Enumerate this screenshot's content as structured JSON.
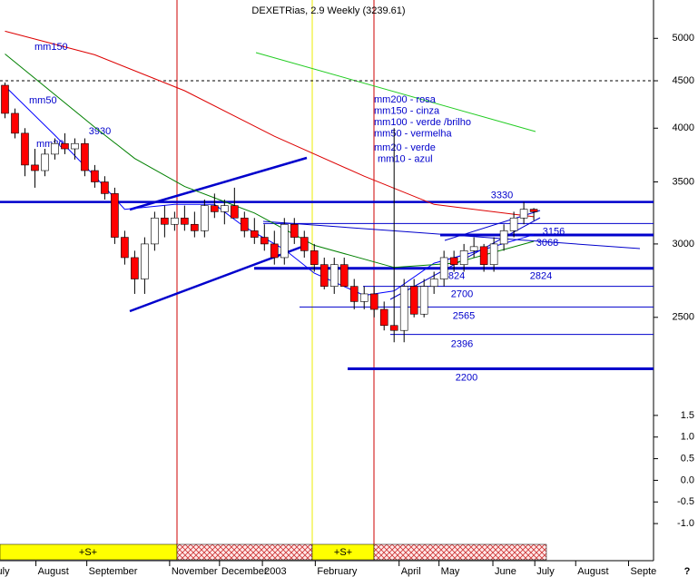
{
  "chart_data": {
    "type": "candlestick",
    "title": "DEXETRias, 2.9 Weekly (3239.61)",
    "candles": {
      "open": [
        4450,
        4150,
        3950,
        3650,
        3600,
        3750,
        3850,
        3800,
        3850,
        3600,
        3500,
        3400,
        3050,
        2900,
        2750,
        3000,
        3200,
        3150,
        3200,
        3150,
        3100,
        3300,
        3250,
        3300,
        3200,
        3100,
        3050,
        3000,
        2900,
        3150,
        3050,
        2950,
        2850,
        2700,
        2850,
        2700,
        2600,
        2650,
        2550,
        2450,
        2420,
        2700,
        2520,
        2700,
        2750,
        2900,
        2850,
        2950,
        2980,
        2850,
        3000,
        3100,
        3200,
        3270
      ],
      "high": [
        4480,
        4200,
        4000,
        3800,
        3800,
        3900,
        3950,
        3900,
        3900,
        3650,
        3550,
        3450,
        3100,
        2950,
        3050,
        3250,
        3300,
        3250,
        3300,
        3250,
        3350,
        3400,
        3350,
        3450,
        3250,
        3200,
        3150,
        3100,
        3200,
        3200,
        3100,
        3000,
        2900,
        2900,
        2900,
        2750,
        2700,
        2700,
        2600,
        4000,
        2750,
        2750,
        2750,
        2800,
        2950,
        2950,
        3000,
        3050,
        3000,
        3050,
        3150,
        3250,
        3330,
        3280
      ],
      "low": [
        4100,
        3900,
        3550,
        3450,
        3550,
        3700,
        3750,
        3700,
        3550,
        3450,
        3350,
        3000,
        2850,
        2650,
        2650,
        2950,
        3050,
        3100,
        3100,
        3050,
        3050,
        3200,
        3150,
        3200,
        3050,
        3000,
        2950,
        2850,
        2850,
        3000,
        2900,
        2800,
        2680,
        2650,
        2700,
        2550,
        2550,
        2500,
        2420,
        2350,
        2350,
        2500,
        2500,
        2650,
        2700,
        2800,
        2800,
        2900,
        2800,
        2800,
        2950,
        3050,
        3150,
        3180
      ],
      "close": [
        4150,
        3950,
        3650,
        3600,
        3750,
        3850,
        3800,
        3850,
        3600,
        3500,
        3400,
        3050,
        2900,
        2750,
        3000,
        3200,
        3150,
        3200,
        3150,
        3100,
        3300,
        3250,
        3300,
        3200,
        3100,
        3050,
        3000,
        2900,
        3150,
        3050,
        2950,
        2850,
        2700,
        2850,
        2700,
        2600,
        2650,
        2550,
        2450,
        2420,
        2700,
        2520,
        2700,
        2750,
        2900,
        2850,
        2950,
        2980,
        2850,
        3000,
        3100,
        3200,
        3270,
        3250
      ],
      "up_color": "#ffffff",
      "down_color": "#ff0000"
    },
    "series": [
      {
        "name": "mm150",
        "color": "#dd0000",
        "x": [
          0,
          9,
          18,
          27,
          36,
          43,
          53
        ],
        "values": [
          5090,
          4800,
          4390,
          3920,
          3550,
          3310,
          3210
        ]
      },
      {
        "name": "mm50",
        "color": "#0000ff",
        "x": [
          0,
          5,
          9,
          12,
          17,
          21,
          24,
          28,
          31,
          36,
          39,
          43,
          48,
          53
        ],
        "values": [
          4440,
          3930,
          3550,
          3270,
          3310,
          3310,
          3130,
          2960,
          2790,
          2640,
          2670,
          2860,
          2960,
          3070
        ]
      },
      {
        "name": "mm20",
        "color": "#008000",
        "x": [
          0,
          9,
          13,
          18,
          25,
          31,
          39,
          45,
          53
        ],
        "values": [
          4810,
          4010,
          3710,
          3460,
          3240,
          2990,
          2830,
          2860,
          3020
        ]
      }
    ],
    "levels": [
      3330,
      3156,
      3068,
      2824,
      2700,
      2565,
      2396,
      2200
    ],
    "peak_label": 3930,
    "legend_notes": [
      "mm200 - rosa",
      "mm150 - cinza",
      "mm100 - verde /brilho",
      "mm50 - vermelha",
      "mm20 - verde",
      "mm10 - azul"
    ],
    "signal_labels": [
      "+S+",
      "+S+"
    ],
    "scale": "log",
    "ylim": [
      2040,
      5500
    ],
    "yticks": [
      5000,
      4500,
      4000,
      3500,
      3000,
      2500
    ],
    "dashed_level": 4500,
    "y2lim": [
      -1.375,
      1.875
    ],
    "y2ticks": [
      1.5,
      {
        "value": 1,
        "label": "1.0"
      },
      0.5,
      {
        "value": 0,
        "label": "0.0"
      },
      -0.5,
      {
        "value": -1,
        "label": "-1.0"
      }
    ],
    "xlim": [
      -0.5,
      65
    ],
    "xticks": [
      {
        "value": -1.5,
        "label": "July"
      },
      {
        "value": 3.1,
        "label": "August"
      },
      {
        "value": 8.2,
        "label": "September"
      },
      {
        "value": 16.5,
        "label": "November"
      },
      {
        "value": 21.5,
        "label": "December"
      },
      {
        "value": 25.8,
        "label": "2003"
      },
      {
        "value": 31.1,
        "label": "February"
      },
      {
        "value": 39.5,
        "label": "April"
      },
      {
        "value": 43.5,
        "label": "May"
      },
      {
        "value": 48.9,
        "label": "June"
      },
      {
        "value": 53.1,
        "label": "July"
      },
      {
        "value": 57.2,
        "label": "August"
      },
      {
        "value": 62.5,
        "label": "Septe"
      }
    ],
    "corner_mark": "?"
  }
}
